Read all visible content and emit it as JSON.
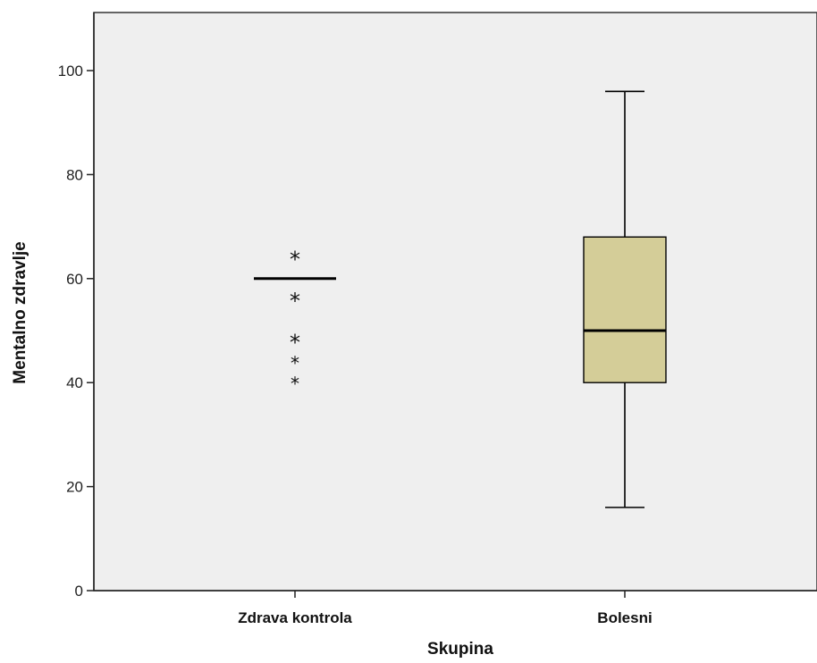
{
  "chart_data": {
    "type": "boxplot",
    "xlabel": "Skupina",
    "ylabel": "Mentalno zdravlje",
    "ylim": [
      0,
      110
    ],
    "yticks": [
      "0",
      "20",
      "40",
      "60",
      "80",
      "100"
    ],
    "grid": false,
    "categories": [
      "Zdrava kontrola",
      "Bolesni"
    ],
    "boxes": [
      {
        "category": "Zdrava kontrola",
        "min": 60,
        "q1": 60,
        "median": 60,
        "q3": 60,
        "max": 60,
        "outliers": [
          {
            "value": 64,
            "marker": "*"
          },
          {
            "value": 56,
            "marker": "*"
          },
          {
            "value": 48,
            "marker": "*"
          },
          {
            "value": 44,
            "marker": "*"
          },
          {
            "value": 40,
            "marker": "*"
          }
        ]
      },
      {
        "category": "Bolesni",
        "min": 16,
        "q1": 40,
        "median": 50,
        "q3": 68,
        "max": 96,
        "outliers": []
      }
    ],
    "colors": {
      "plot_background": "#efefef",
      "box_fill": "#d4cd98",
      "line": "#000000"
    }
  }
}
